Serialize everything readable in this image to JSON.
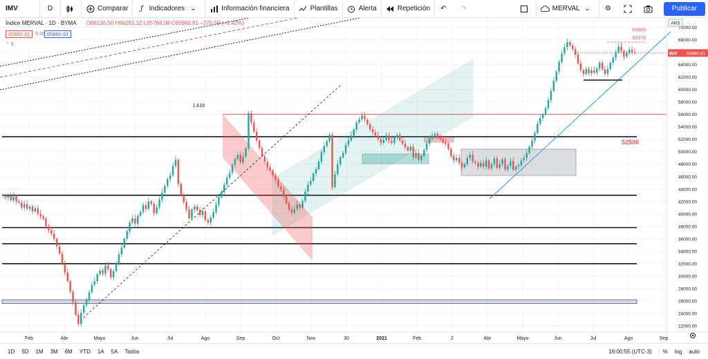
{
  "toolbar": {
    "symbol": "IMV",
    "interval": "D",
    "compare_label": "Comparar",
    "indicators_label": "Indicadores",
    "financials_label": "Información financiera",
    "templates_label": "Plantillas",
    "alert_label": "Alerta",
    "replay_label": "Repetición",
    "layout_name": "MERVAL",
    "publish_label": "Publicar"
  },
  "legend": {
    "title": "Índice MERVAL · 1D · BYMA",
    "ohlc": "O66136.50  H66291.32  L65768.08  C65860.91  −275.59 (−0.42%)",
    "sell_price": "65860.91",
    "spread": "0.00",
    "buy_price": "65860.91",
    "indicator_count": "8"
  },
  "bottom": {
    "ranges": [
      "1D",
      "5D",
      "1M",
      "3M",
      "6M",
      "YTD",
      "1A",
      "5A",
      "Todos"
    ],
    "time": "16:00:55 (UTC-3)",
    "percent_label": "%",
    "log_label": "log",
    "auto_label": "auto"
  },
  "colors": {
    "up": "#26a69a",
    "down": "#ef5350",
    "accent": "#2962ff",
    "grid": "#f0f3fa",
    "support": "#c5cbe6"
  },
  "chart_data": {
    "type": "candlestick",
    "currency_label": "ARS",
    "last_price_label": "IMV",
    "last_price": 65860.91,
    "ylim": [
      21000,
      71500
    ],
    "y_ticks": [
      22000,
      24000,
      26000,
      28000,
      30000,
      32000,
      34000,
      36000,
      38000,
      40000,
      42000,
      44000,
      46000,
      48000,
      50000,
      52000,
      54000,
      56000,
      58000,
      60000,
      62000,
      64000,
      66000,
      68000,
      70000
    ],
    "x_ticks": [
      "Feb",
      "Abr",
      "Mayo",
      "Jun",
      "Jul",
      "Ago",
      "Sep",
      "Oct",
      "Nov",
      "30",
      "2021",
      "Feb",
      "2",
      "Abr",
      "Mayo",
      "Jun",
      "Jul",
      "Ago",
      "Sep"
    ],
    "annotations": [
      {
        "label": "69688",
        "value": 69688
      },
      {
        "label": "68376",
        "value": 68376
      },
      {
        "label": "52500",
        "value": 52500
      },
      {
        "label": "1.618",
        "value": 57500
      }
    ],
    "horizontal_levels": [
      56000,
      52400,
      43000,
      37800,
      35200,
      32000
    ],
    "support_band": [
      25600,
      26200
    ],
    "close_series": [
      43000,
      42600,
      42900,
      42200,
      42800,
      42000,
      41800,
      41000,
      41600,
      40800,
      41200,
      40400,
      40900,
      40000,
      39600,
      39200,
      38000,
      37400,
      36800,
      36000,
      34800,
      33600,
      32000,
      30600,
      29200,
      27500,
      25800,
      23800,
      22300,
      24100,
      25300,
      26200,
      27400,
      28600,
      29200,
      30300,
      30900,
      30400,
      31700,
      31100,
      29800,
      30800,
      32000,
      33500,
      34600,
      36000,
      37200,
      38600,
      39300,
      38400,
      39700,
      40300,
      41400,
      40800,
      42000,
      41600,
      40100,
      41100,
      42300,
      43400,
      44500,
      45600,
      46200,
      47700,
      48700,
      44800,
      43000,
      41900,
      40700,
      39300,
      40700,
      41200,
      40600,
      39800,
      40400,
      39000,
      38600,
      39400,
      40300,
      41500,
      42700,
      43500,
      44700,
      45800,
      46600,
      47900,
      48800,
      49500,
      48300,
      49200,
      50500,
      56200,
      54700,
      53200,
      51800,
      50600,
      49200,
      48400,
      47500,
      47000,
      46200,
      45500,
      44400,
      43900,
      42800,
      41700,
      40700,
      40200,
      40800,
      41500,
      41000,
      42100,
      43600,
      44700,
      45300,
      46500,
      47200,
      48400,
      49900,
      50900,
      51700,
      52700,
      44300,
      46400,
      48000,
      49100,
      49800,
      51100,
      51800,
      52600,
      53600,
      54700,
      55200,
      55800,
      55200,
      54400,
      53600,
      53100,
      52600,
      52000,
      51400,
      51900,
      52600,
      51800,
      51400,
      52300,
      52700,
      51800,
      51300,
      50700,
      50200,
      50800,
      49100,
      49800,
      48700,
      49300,
      50300,
      51300,
      52100,
      52600,
      52900,
      52400,
      52000,
      51500,
      51300,
      50400,
      49300,
      48600,
      49000,
      48200,
      47500,
      48000,
      49000,
      49500,
      48400,
      48200,
      47600,
      48200,
      47600,
      48600,
      47300,
      48000,
      48900,
      47400,
      48000,
      48800,
      47100,
      47700,
      48500,
      47100,
      47600,
      47800,
      48600,
      49000,
      49800,
      50800,
      51800,
      53000,
      54500,
      55400,
      56000,
      57000,
      58300,
      59800,
      61400,
      62900,
      64400,
      65800,
      66800,
      67600,
      67100,
      66500,
      65600,
      64200,
      63100,
      62500,
      63300,
      62600,
      63100,
      62700,
      63400,
      64300,
      63200,
      62500,
      63300,
      64300,
      65100,
      66000,
      66900,
      66200,
      65300,
      65900,
      66400,
      66000,
      65860.91
    ]
  }
}
